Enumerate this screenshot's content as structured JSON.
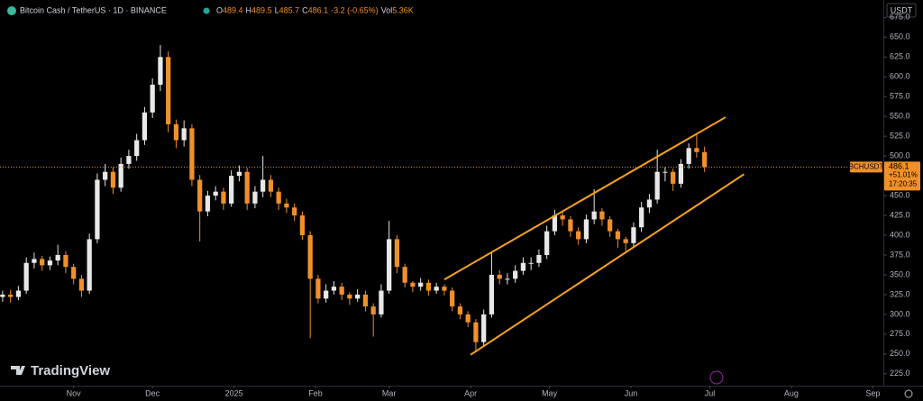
{
  "chart_data": {
    "type": "candlestick",
    "header": {
      "symbol": "Bitcoin Cash / TetherUS · 1D · BINANCE",
      "ohlc": [
        {
          "label": "O",
          "value": 489.4
        },
        {
          "label": "H",
          "value": 489.5
        },
        {
          "label": "L",
          "value": 485.7
        },
        {
          "label": "C",
          "value": 486.1
        }
      ],
      "change": "-3.2 (-0.65%)",
      "volume_label": "Vol",
      "volume": "5.36K"
    },
    "currency_button": "USDT",
    "brand": "TradingView",
    "up_color": "#e8e8e8",
    "down_color": "#f0902a",
    "x": [
      0,
      3,
      6,
      9,
      12,
      15,
      18,
      21,
      24,
      27,
      30,
      33,
      36,
      39,
      42,
      45,
      48,
      51,
      54,
      57,
      60,
      63,
      66,
      69,
      72,
      75,
      78,
      81,
      84,
      87,
      90,
      93,
      96,
      99,
      102,
      105,
      108,
      111,
      114,
      117,
      120,
      123,
      126,
      129,
      132,
      135,
      138,
      141,
      144,
      147,
      150,
      153,
      156,
      159,
      162,
      165,
      168,
      171,
      174,
      177,
      180,
      183,
      186,
      189,
      192,
      195,
      198,
      201,
      204,
      207,
      210,
      213,
      216,
      219,
      222,
      225,
      228,
      231,
      234,
      237,
      240,
      243,
      246,
      249,
      252,
      255,
      258,
      261,
      264,
      267
    ],
    "open": [
      322,
      325,
      322,
      330,
      365,
      370,
      362,
      368,
      375,
      360,
      345,
      330,
      395,
      470,
      480,
      460,
      490,
      500,
      520,
      555,
      590,
      625,
      540,
      520,
      535,
      470,
      430,
      450,
      455,
      440,
      475,
      480,
      440,
      455,
      470,
      455,
      440,
      435,
      425,
      400,
      345,
      320,
      330,
      335,
      325,
      320,
      325,
      310,
      300,
      330,
      395,
      360,
      340,
      335,
      340,
      330,
      335,
      330,
      310,
      300,
      290,
      265,
      300,
      350,
      345,
      345,
      355,
      365,
      365,
      375,
      405,
      425,
      420,
      405,
      395,
      420,
      430,
      420,
      405,
      395,
      390,
      410,
      435,
      445,
      480,
      480,
      465,
      490,
      510,
      505
    ],
    "high": [
      330,
      331,
      336,
      372,
      378,
      374,
      373,
      388,
      380,
      364,
      350,
      402,
      478,
      490,
      486,
      498,
      508,
      528,
      562,
      598,
      640,
      632,
      546,
      545,
      540,
      476,
      456,
      462,
      460,
      482,
      488,
      485,
      462,
      500,
      476,
      460,
      446,
      440,
      430,
      405,
      350,
      338,
      342,
      340,
      328,
      332,
      330,
      314,
      338,
      418,
      400,
      364,
      342,
      346,
      344,
      340,
      338,
      334,
      314,
      304,
      294,
      306,
      378,
      356,
      352,
      362,
      372,
      372,
      382,
      412,
      432,
      430,
      424,
      410,
      426,
      458,
      434,
      424,
      408,
      398,
      416,
      442,
      452,
      508,
      486,
      484,
      496,
      516,
      528,
      512
    ],
    "low": [
      316,
      315,
      318,
      326,
      358,
      355,
      356,
      362,
      352,
      338,
      322,
      326,
      390,
      462,
      452,
      455,
      484,
      494,
      514,
      548,
      582,
      530,
      510,
      512,
      462,
      392,
      424,
      444,
      432,
      436,
      468,
      432,
      434,
      448,
      448,
      432,
      428,
      418,
      394,
      270,
      314,
      315,
      325,
      318,
      312,
      316,
      304,
      272,
      296,
      326,
      352,
      334,
      328,
      330,
      324,
      326,
      324,
      304,
      294,
      284,
      252,
      260,
      296,
      338,
      338,
      340,
      350,
      356,
      360,
      370,
      400,
      412,
      398,
      388,
      390,
      414,
      412,
      398,
      384,
      380,
      386,
      404,
      428,
      440,
      468,
      456,
      460,
      484,
      498,
      480
    ],
    "close": [
      325,
      322,
      330,
      365,
      370,
      362,
      368,
      375,
      360,
      345,
      330,
      395,
      470,
      480,
      460,
      490,
      500,
      520,
      555,
      590,
      625,
      540,
      520,
      535,
      470,
      430,
      450,
      455,
      440,
      475,
      480,
      440,
      455,
      470,
      455,
      440,
      435,
      425,
      400,
      345,
      320,
      330,
      335,
      325,
      320,
      325,
      310,
      300,
      330,
      395,
      360,
      340,
      335,
      340,
      330,
      335,
      330,
      310,
      300,
      290,
      265,
      300,
      350,
      345,
      345,
      355,
      365,
      365,
      375,
      405,
      425,
      420,
      405,
      395,
      420,
      430,
      420,
      405,
      395,
      390,
      410,
      435,
      445,
      480,
      480,
      465,
      490,
      510,
      505,
      486.1
    ],
    "xlim": [
      -1,
      335
    ],
    "xticks": [
      {
        "value": 27,
        "label": "Nov"
      },
      {
        "value": 57,
        "label": "Dec"
      },
      {
        "value": 88,
        "label": "2025"
      },
      {
        "value": 119,
        "label": "Feb"
      },
      {
        "value": 147,
        "label": "Mar"
      },
      {
        "value": 178,
        "label": "Apr"
      },
      {
        "value": 208,
        "label": "May"
      },
      {
        "value": 239,
        "label": "Jun"
      },
      {
        "value": 269,
        "label": "Jul"
      },
      {
        "value": 300,
        "label": "Aug"
      },
      {
        "value": 331,
        "label": "Sep"
      }
    ],
    "ylim": [
      210,
      697
    ],
    "yticks": [
      {
        "value": 225,
        "label": "225.0"
      },
      {
        "value": 250,
        "label": "250.0"
      },
      {
        "value": 275,
        "label": "275.0"
      },
      {
        "value": 300,
        "label": "300.0"
      },
      {
        "value": 325,
        "label": "325.0"
      },
      {
        "value": 350,
        "label": "350.0"
      },
      {
        "value": 375,
        "label": "375.0"
      },
      {
        "value": 400,
        "label": "400.0"
      },
      {
        "value": 425,
        "label": "425.0"
      },
      {
        "value": 450,
        "label": "450.0"
      },
      {
        "value": 475,
        "label": "475.0"
      },
      {
        "value": 500,
        "label": "500.0"
      },
      {
        "value": 525,
        "label": "525.0"
      },
      {
        "value": 550,
        "label": "550.0"
      },
      {
        "value": 575,
        "label": "575.0"
      },
      {
        "value": 600,
        "label": "600.0"
      },
      {
        "value": 625,
        "label": "625.0"
      },
      {
        "value": 650,
        "label": "650.0"
      },
      {
        "value": 675,
        "label": "675.0"
      }
    ],
    "trend_lines": [
      {
        "x": [
          168,
          275
        ],
        "y": [
          344,
          549
        ],
        "color": "#f7a21b"
      },
      {
        "x": [
          178,
          282
        ],
        "y": [
          249,
          477
        ],
        "color": "#f7a21b"
      }
    ],
    "price_label": {
      "symbol": "BCHUSDT",
      "value": 486.1,
      "change": "+51.01%",
      "countdown": "17:20:35",
      "color": "#f0902a"
    }
  }
}
